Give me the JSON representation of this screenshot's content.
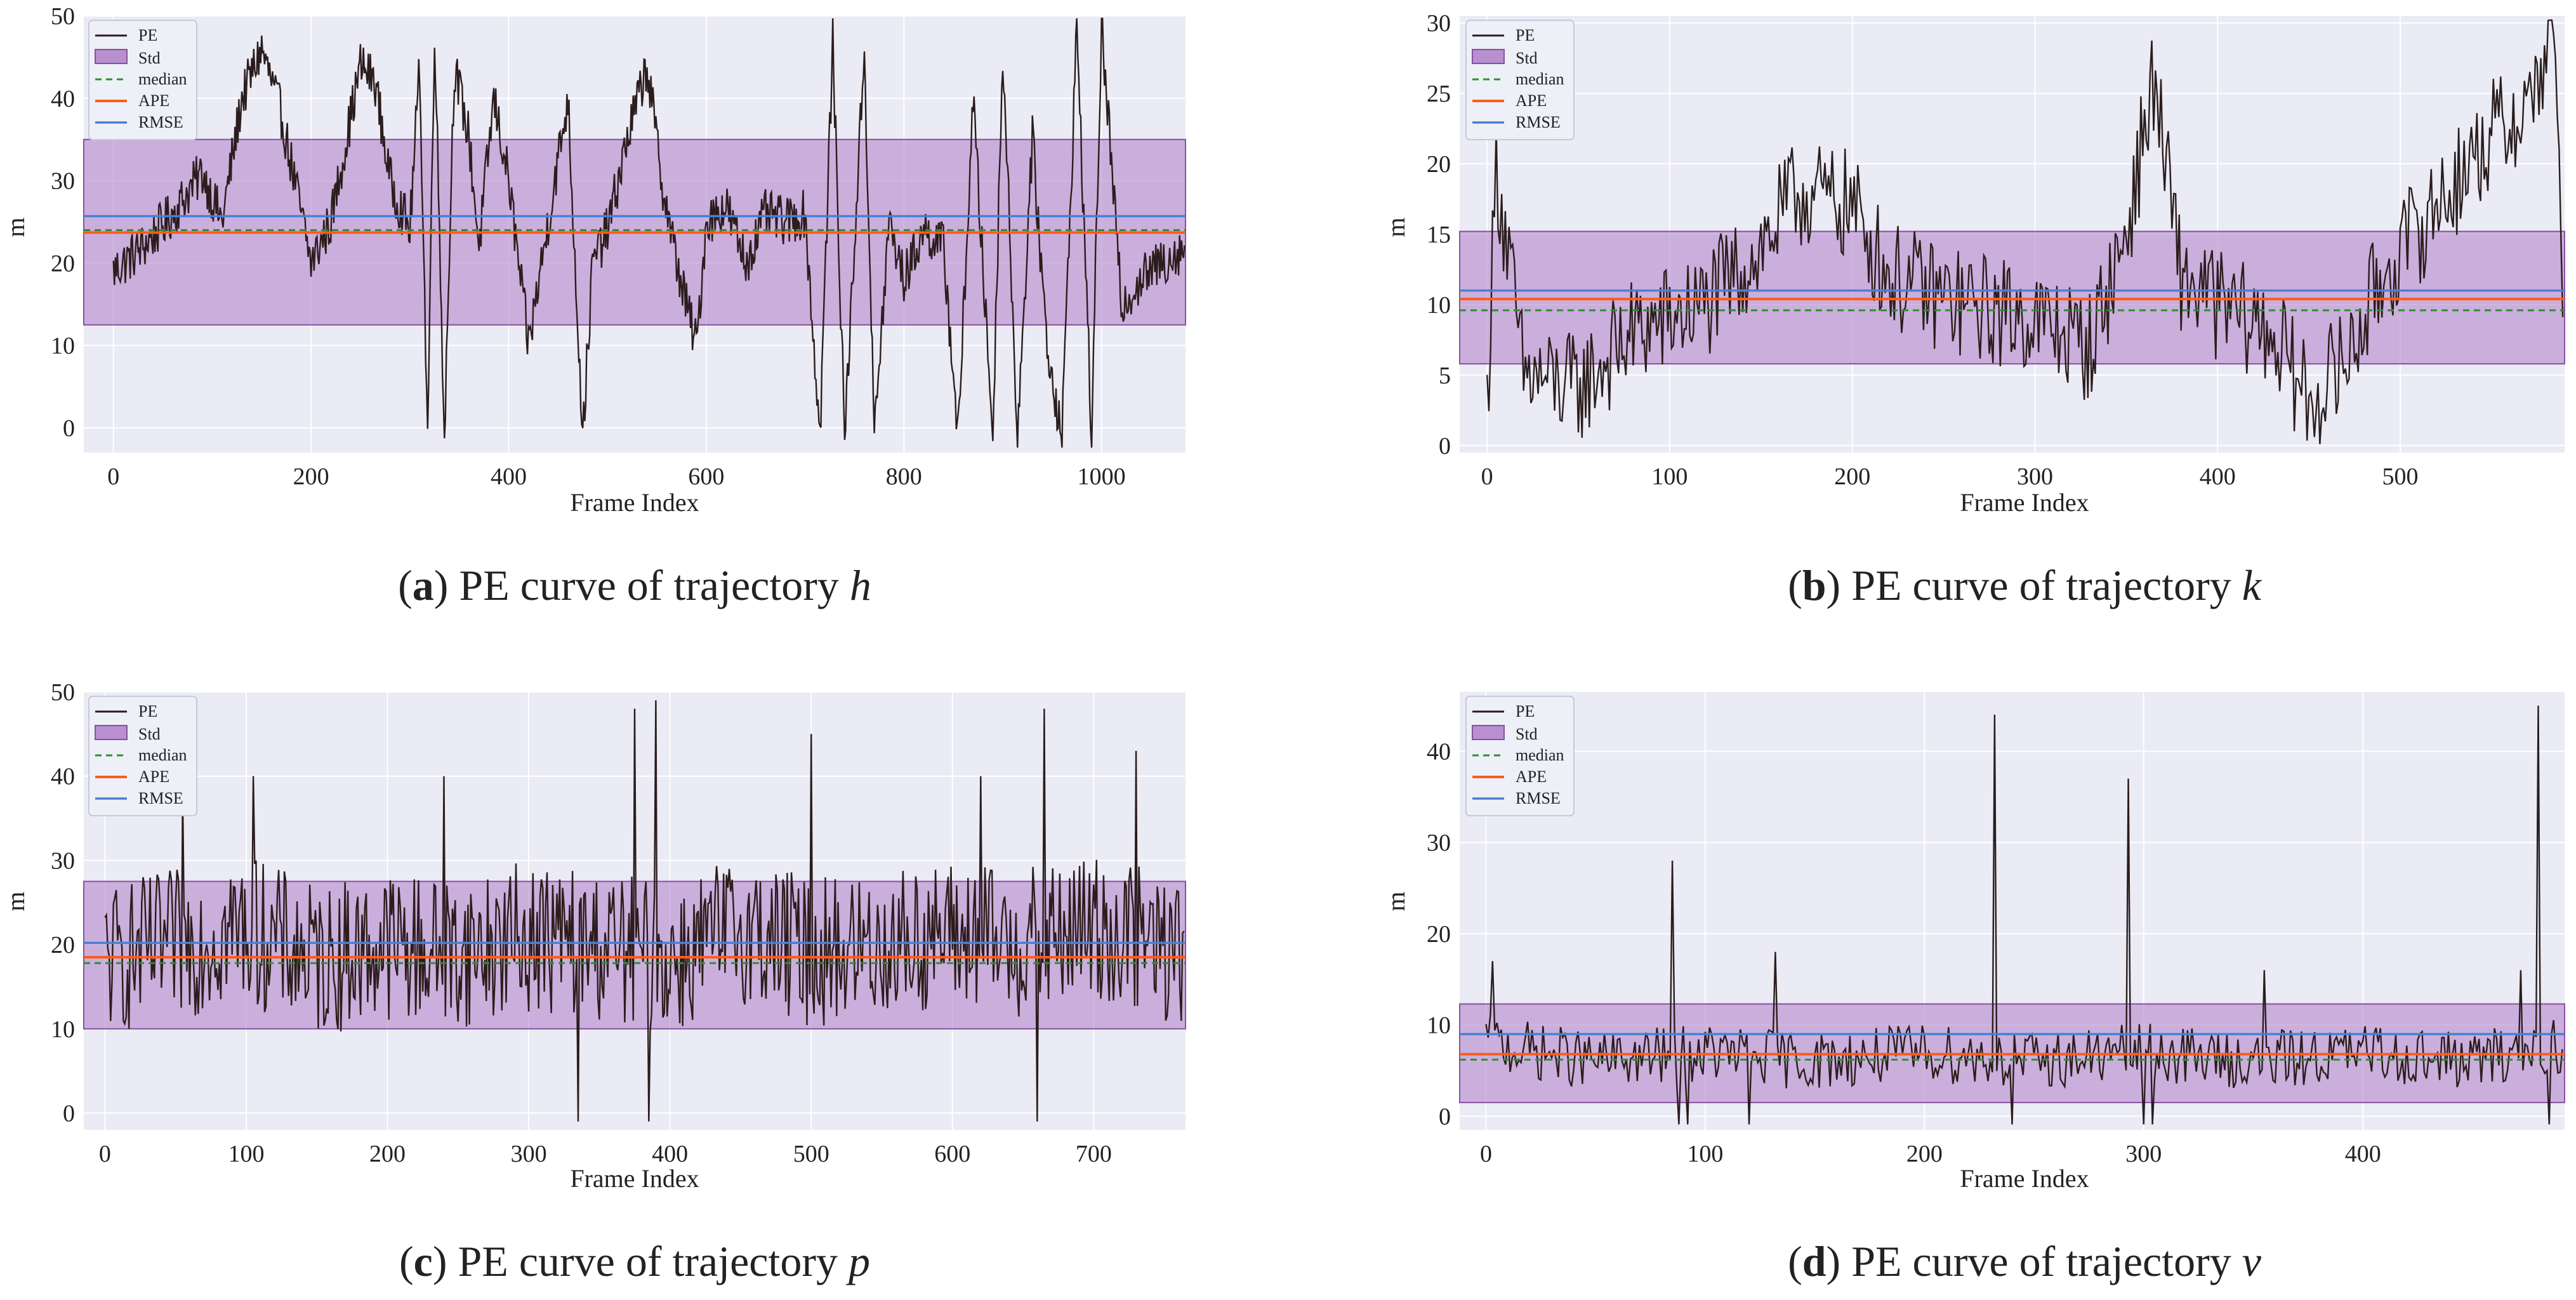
{
  "figure": {
    "panels": [
      {
        "id": "a",
        "caption": {
          "letter": "a",
          "text": "PE curve of trajectory",
          "var": "h"
        },
        "legend": [
          "PE",
          "Std",
          "median",
          "APE",
          "RMSE"
        ],
        "chart_data": {
          "type": "line",
          "title": "",
          "xlabel": "Frame Index",
          "ylabel": "m",
          "xlim": [
            -30,
            1085
          ],
          "ylim": [
            -3,
            50
          ],
          "xticks": [
            0,
            200,
            400,
            600,
            800,
            1000
          ],
          "yticks": [
            0,
            10,
            20,
            30,
            40,
            50
          ],
          "n_points": 1085,
          "std_band": [
            12.5,
            35.0
          ],
          "median": 24.0,
          "ape": 23.7,
          "rmse": 25.7,
          "anchors": [
            [
              0,
              19
            ],
            [
              30,
              22
            ],
            [
              60,
              26
            ],
            [
              90,
              31
            ],
            [
              110,
              25
            ],
            [
              130,
              40
            ],
            [
              150,
              46
            ],
            [
              170,
              38
            ],
            [
              200,
              20
            ],
            [
              220,
              25
            ],
            [
              250,
              44
            ],
            [
              265,
              42
            ],
            [
              280,
              30
            ],
            [
              300,
              24
            ],
            [
              310,
              44
            ],
            [
              318,
              -1
            ],
            [
              325,
              49
            ],
            [
              335,
              -1
            ],
            [
              345,
              44
            ],
            [
              360,
              35
            ],
            [
              370,
              22
            ],
            [
              385,
              40
            ],
            [
              400,
              30
            ],
            [
              420,
              10
            ],
            [
              440,
              25
            ],
            [
              460,
              40
            ],
            [
              475,
              -1
            ],
            [
              485,
              20
            ],
            [
              500,
              24
            ],
            [
              520,
              35
            ],
            [
              540,
              44
            ],
            [
              555,
              30
            ],
            [
              570,
              20
            ],
            [
              590,
              10
            ],
            [
              600,
              25
            ],
            [
              620,
              27
            ],
            [
              640,
              20
            ],
            [
              660,
              26
            ],
            [
              680,
              25
            ],
            [
              700,
              26
            ],
            [
              715,
              -1
            ],
            [
              728,
              47
            ],
            [
              740,
              -1
            ],
            [
              760,
              46
            ],
            [
              770,
              -1
            ],
            [
              785,
              25
            ],
            [
              800,
              18
            ],
            [
              820,
              24
            ],
            [
              840,
              22
            ],
            [
              855,
              -1
            ],
            [
              870,
              40
            ],
            [
              890,
              -1
            ],
            [
              900,
              46
            ],
            [
              915,
              -1
            ],
            [
              930,
              35
            ],
            [
              945,
              10
            ],
            [
              960,
              -1
            ],
            [
              975,
              49
            ],
            [
              990,
              -1
            ],
            [
              1000,
              49
            ],
            [
              1020,
              15
            ],
            [
              1040,
              18
            ],
            [
              1060,
              20
            ],
            [
              1084,
              22
            ]
          ],
          "series": [
            {
              "name": "PE",
              "color": "#2b1d1d"
            },
            {
              "name": "Std",
              "color": "#b26fc8"
            },
            {
              "name": "median",
              "color": "#2f8f2f"
            },
            {
              "name": "APE",
              "color": "#ff5b1a"
            },
            {
              "name": "RMSE",
              "color": "#4a7fd4"
            }
          ]
        }
      },
      {
        "id": "b",
        "caption": {
          "letter": "b",
          "text": "PE curve of trajectory",
          "var": "k"
        },
        "legend": [
          "PE",
          "Std",
          "median",
          "APE",
          "RMSE"
        ],
        "chart_data": {
          "type": "line",
          "title": "",
          "xlabel": "Frame Index",
          "ylabel": "m",
          "xlim": [
            -15,
            590
          ],
          "ylim": [
            -0.5,
            30.5
          ],
          "xticks": [
            0,
            100,
            200,
            300,
            400,
            500
          ],
          "yticks": [
            0,
            5,
            10,
            15,
            20,
            25,
            30
          ],
          "n_points": 590,
          "std_band": [
            5.8,
            15.2
          ],
          "median": 9.6,
          "ape": 10.4,
          "rmse": 11.0,
          "anchors": [
            [
              0,
              3
            ],
            [
              5,
              20
            ],
            [
              20,
              5
            ],
            [
              50,
              4
            ],
            [
              80,
              8
            ],
            [
              120,
              10
            ],
            [
              150,
              14
            ],
            [
              170,
              18
            ],
            [
              200,
              17
            ],
            [
              220,
              12
            ],
            [
              260,
              10
            ],
            [
              300,
              9
            ],
            [
              330,
              7
            ],
            [
              350,
              15
            ],
            [
              365,
              26
            ],
            [
              380,
              12
            ],
            [
              400,
              10
            ],
            [
              430,
              8
            ],
            [
              450,
              3
            ],
            [
              470,
              6
            ],
            [
              490,
              12
            ],
            [
              520,
              17
            ],
            [
              550,
              22
            ],
            [
              570,
              24
            ],
            [
              585,
              30
            ],
            [
              589,
              7
            ]
          ],
          "series": [
            {
              "name": "PE",
              "color": "#2b1d1d"
            },
            {
              "name": "Std",
              "color": "#b26fc8"
            },
            {
              "name": "median",
              "color": "#2f8f2f"
            },
            {
              "name": "APE",
              "color": "#ff5b1a"
            },
            {
              "name": "RMSE",
              "color": "#4a7fd4"
            }
          ]
        }
      },
      {
        "id": "c",
        "caption": {
          "letter": "c",
          "text": "PE curve of trajectory",
          "var": "p"
        },
        "legend": [
          "PE",
          "Std",
          "median",
          "APE",
          "RMSE"
        ],
        "chart_data": {
          "type": "line",
          "title": "",
          "xlabel": "Frame Index",
          "ylabel": "m",
          "xlim": [
            -15,
            765
          ],
          "ylim": [
            -2,
            50
          ],
          "xticks": [
            0,
            100,
            200,
            300,
            400,
            500,
            600,
            700
          ],
          "yticks": [
            0,
            10,
            20,
            30,
            40,
            50
          ],
          "n_points": 765,
          "std_band": [
            10.0,
            27.5
          ],
          "median": 17.8,
          "ape": 18.5,
          "rmse": 20.2,
          "anchors": [
            [
              0,
              18
            ],
            [
              50,
              20
            ],
            [
              100,
              22
            ],
            [
              150,
              18
            ],
            [
              200,
              20
            ],
            [
              250,
              19
            ],
            [
              300,
              21
            ],
            [
              350,
              20
            ],
            [
              400,
              18
            ],
            [
              450,
              22
            ],
            [
              500,
              19
            ],
            [
              550,
              20
            ],
            [
              600,
              21
            ],
            [
              650,
              20
            ],
            [
              700,
              22
            ],
            [
              764,
              19
            ]
          ],
          "spikes": [
            [
              55,
              38
            ],
            [
              105,
              40
            ],
            [
              240,
              40
            ],
            [
              335,
              -1
            ],
            [
              375,
              48
            ],
            [
              385,
              -1
            ],
            [
              390,
              49
            ],
            [
              500,
              45
            ],
            [
              620,
              40
            ],
            [
              660,
              -1
            ],
            [
              665,
              48
            ],
            [
              730,
              43
            ]
          ],
          "series": [
            {
              "name": "PE",
              "color": "#2b1d1d"
            },
            {
              "name": "Std",
              "color": "#b26fc8"
            },
            {
              "name": "median",
              "color": "#2f8f2f"
            },
            {
              "name": "APE",
              "color": "#ff5b1a"
            },
            {
              "name": "RMSE",
              "color": "#4a7fd4"
            }
          ]
        }
      },
      {
        "id": "d",
        "caption": {
          "letter": "d",
          "text": "PE curve of trajectory",
          "var": "v"
        },
        "legend": [
          "PE",
          "Std",
          "median",
          "APE",
          "RMSE"
        ],
        "chart_data": {
          "type": "line",
          "title": "",
          "xlabel": "Frame Index",
          "ylabel": "m",
          "xlim": [
            -12,
            492
          ],
          "ylim": [
            -1.5,
            46.5
          ],
          "xticks": [
            0,
            100,
            200,
            300,
            400
          ],
          "yticks": [
            0,
            10,
            20,
            30,
            40
          ],
          "n_points": 492,
          "std_band": [
            1.5,
            12.3
          ],
          "median": 6.2,
          "ape": 6.8,
          "rmse": 9.0,
          "anchors": [
            [
              0,
              8
            ],
            [
              50,
              6
            ],
            [
              100,
              7
            ],
            [
              150,
              6
            ],
            [
              200,
              7
            ],
            [
              250,
              6
            ],
            [
              300,
              7
            ],
            [
              350,
              6
            ],
            [
              400,
              7
            ],
            [
              450,
              6
            ],
            [
              491,
              8
            ]
          ],
          "spikes": [
            [
              3,
              17
            ],
            [
              85,
              28
            ],
            [
              88,
              -1
            ],
            [
              92,
              -1
            ],
            [
              120,
              -1
            ],
            [
              132,
              18
            ],
            [
              232,
              44
            ],
            [
              240,
              -1
            ],
            [
              293,
              37
            ],
            [
              300,
              -1
            ],
            [
              304,
              -1
            ],
            [
              355,
              16
            ],
            [
              472,
              16
            ],
            [
              480,
              45
            ],
            [
              485,
              -1
            ]
          ],
          "series": [
            {
              "name": "PE",
              "color": "#2b1d1d"
            },
            {
              "name": "Std",
              "color": "#b26fc8"
            },
            {
              "name": "median",
              "color": "#2f8f2f"
            },
            {
              "name": "APE",
              "color": "#ff5b1a"
            },
            {
              "name": "RMSE",
              "color": "#4a7fd4"
            }
          ]
        }
      }
    ]
  }
}
